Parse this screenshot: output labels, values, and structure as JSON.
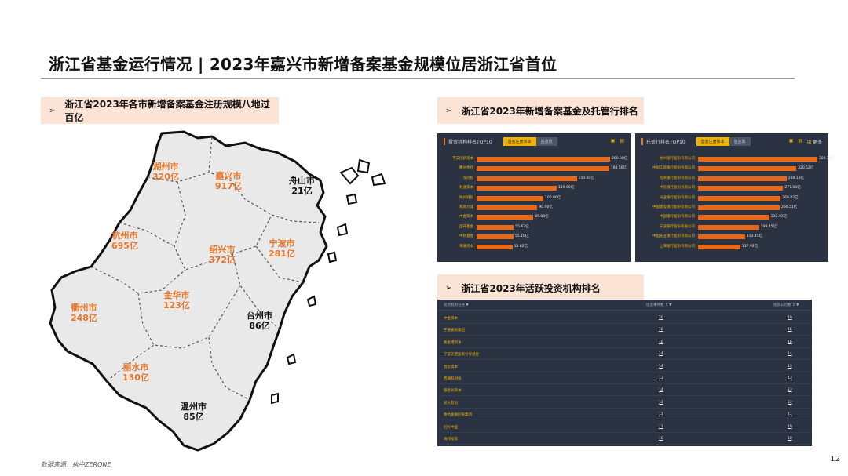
{
  "title": "浙江省基金运行情况 | 2023年嘉兴市新增备案基金规模位居浙江省首位",
  "sections": {
    "left": "浙江省2023年各市新增备案基金注册规模八地过百亿",
    "right_top": "浙江省2023年新增备案基金及托管行排名",
    "right_bottom": "浙江省2023年活跃投资机构排名"
  },
  "bullet": "➢",
  "map": {
    "cities": [
      {
        "name": "湖州市",
        "value": "320亿",
        "style": "orange"
      },
      {
        "name": "嘉兴市",
        "value": "917亿",
        "style": "orange"
      },
      {
        "name": "舟山市",
        "value": "21亿",
        "style": "black"
      },
      {
        "name": "杭州市",
        "value": "695亿",
        "style": "orange"
      },
      {
        "name": "绍兴市",
        "value": "372亿",
        "style": "orange"
      },
      {
        "name": "宁波市",
        "value": "281亿",
        "style": "orange"
      },
      {
        "name": "衢州市",
        "value": "248亿",
        "style": "orange"
      },
      {
        "name": "金华市",
        "value": "123亿",
        "style": "orange"
      },
      {
        "name": "台州市",
        "value": "86亿",
        "style": "black"
      },
      {
        "name": "丽水市",
        "value": "130亿",
        "style": "orange"
      },
      {
        "name": "温州市",
        "value": "85亿",
        "style": "black"
      }
    ]
  },
  "panel_left": {
    "title": "投资机构排名TOP10",
    "tab_active": "基金注册资本",
    "tab_other": "基金数",
    "icons": [
      "chart-icon",
      "table-icon"
    ],
    "max": 200.0,
    "rows": [
      {
        "label": "平安创新资本",
        "value": 200.0,
        "text": "200.00亿"
      },
      {
        "label": "衢州金控",
        "value": 198.56,
        "text": "198.56亿"
      },
      {
        "label": "深创投",
        "value": 150.0,
        "text": "150.00亿"
      },
      {
        "label": "财通资本",
        "value": 119.96,
        "text": "119.96亿"
      },
      {
        "label": "杭州城投",
        "value": 100.0,
        "text": "100.00亿"
      },
      {
        "label": "网商力诚",
        "value": 90.96,
        "text": "90.96亿"
      },
      {
        "label": "中金资本",
        "value": 85.0,
        "text": "85.00亿"
      },
      {
        "label": "国开基金",
        "value": 55.63,
        "text": "55.63亿"
      },
      {
        "label": "中财基金",
        "value": 55.1,
        "text": "55.10亿"
      },
      {
        "label": "海通资本",
        "value": 53.62,
        "text": "53.62亿"
      }
    ]
  },
  "panel_right": {
    "title": "托管行排名TOP10",
    "tab_active": "基金注册资本",
    "tab_other": "基金数",
    "more": "更多",
    "max": 389.38,
    "rows": [
      {
        "label": "杭州银行股份有限公司",
        "value": 389.38,
        "text": "389.38亿"
      },
      {
        "label": "中国工商银行股份有限公司",
        "value": 320.52,
        "text": "320.52亿"
      },
      {
        "label": "招商银行股份有限公司",
        "value": 289.13,
        "text": "289.13亿"
      },
      {
        "label": "中信银行股份有限公司",
        "value": 277.55,
        "text": "277.55亿"
      },
      {
        "label": "兴业银行股份有限公司",
        "value": 269.82,
        "text": "269.82亿"
      },
      {
        "label": "中国建设银行股份有限公司",
        "value": 266.51,
        "text": "266.51亿"
      },
      {
        "label": "中国银行股份有限公司",
        "value": 232.92,
        "text": "232.92亿"
      },
      {
        "label": "宁波银行股份有限公司",
        "value": 199.45,
        "text": "199.45亿"
      },
      {
        "label": "中国农业银行股份有限公司",
        "value": 153.45,
        "text": "153.45亿"
      },
      {
        "label": "上海银行股份有限公司",
        "value": 137.92,
        "text": "137.92亿"
      }
    ]
  },
  "table": {
    "headers": [
      "投资机构名称 ▼",
      "投资事件数 ⇕ ▼",
      "投资公司数 ⇕ ▼"
    ],
    "rows": [
      {
        "name": "中金资本",
        "events": "20",
        "companies": "19"
      },
      {
        "name": "宁波通商集团",
        "events": "16",
        "companies": "16"
      },
      {
        "name": "紫金港资本",
        "events": "16",
        "companies": "16"
      },
      {
        "name": "宁波天使投资引导基金",
        "events": "14",
        "companies": "14"
      },
      {
        "name": "普华资本",
        "events": "14",
        "companies": "13"
      },
      {
        "name": "西湖科创投",
        "events": "13",
        "companies": "13"
      },
      {
        "name": "银杏谷资本",
        "events": "14",
        "companies": "13"
      },
      {
        "name": "浙大友创",
        "events": "12",
        "companies": "12"
      },
      {
        "name": "余杭金融控股集团",
        "events": "11",
        "companies": "11"
      },
      {
        "name": "红杉中国",
        "events": "11",
        "companies": "10"
      },
      {
        "name": "海邦投资",
        "events": "10",
        "companies": "10"
      }
    ]
  },
  "source": "数据来源：执中ZERONE",
  "page_number": "12"
}
